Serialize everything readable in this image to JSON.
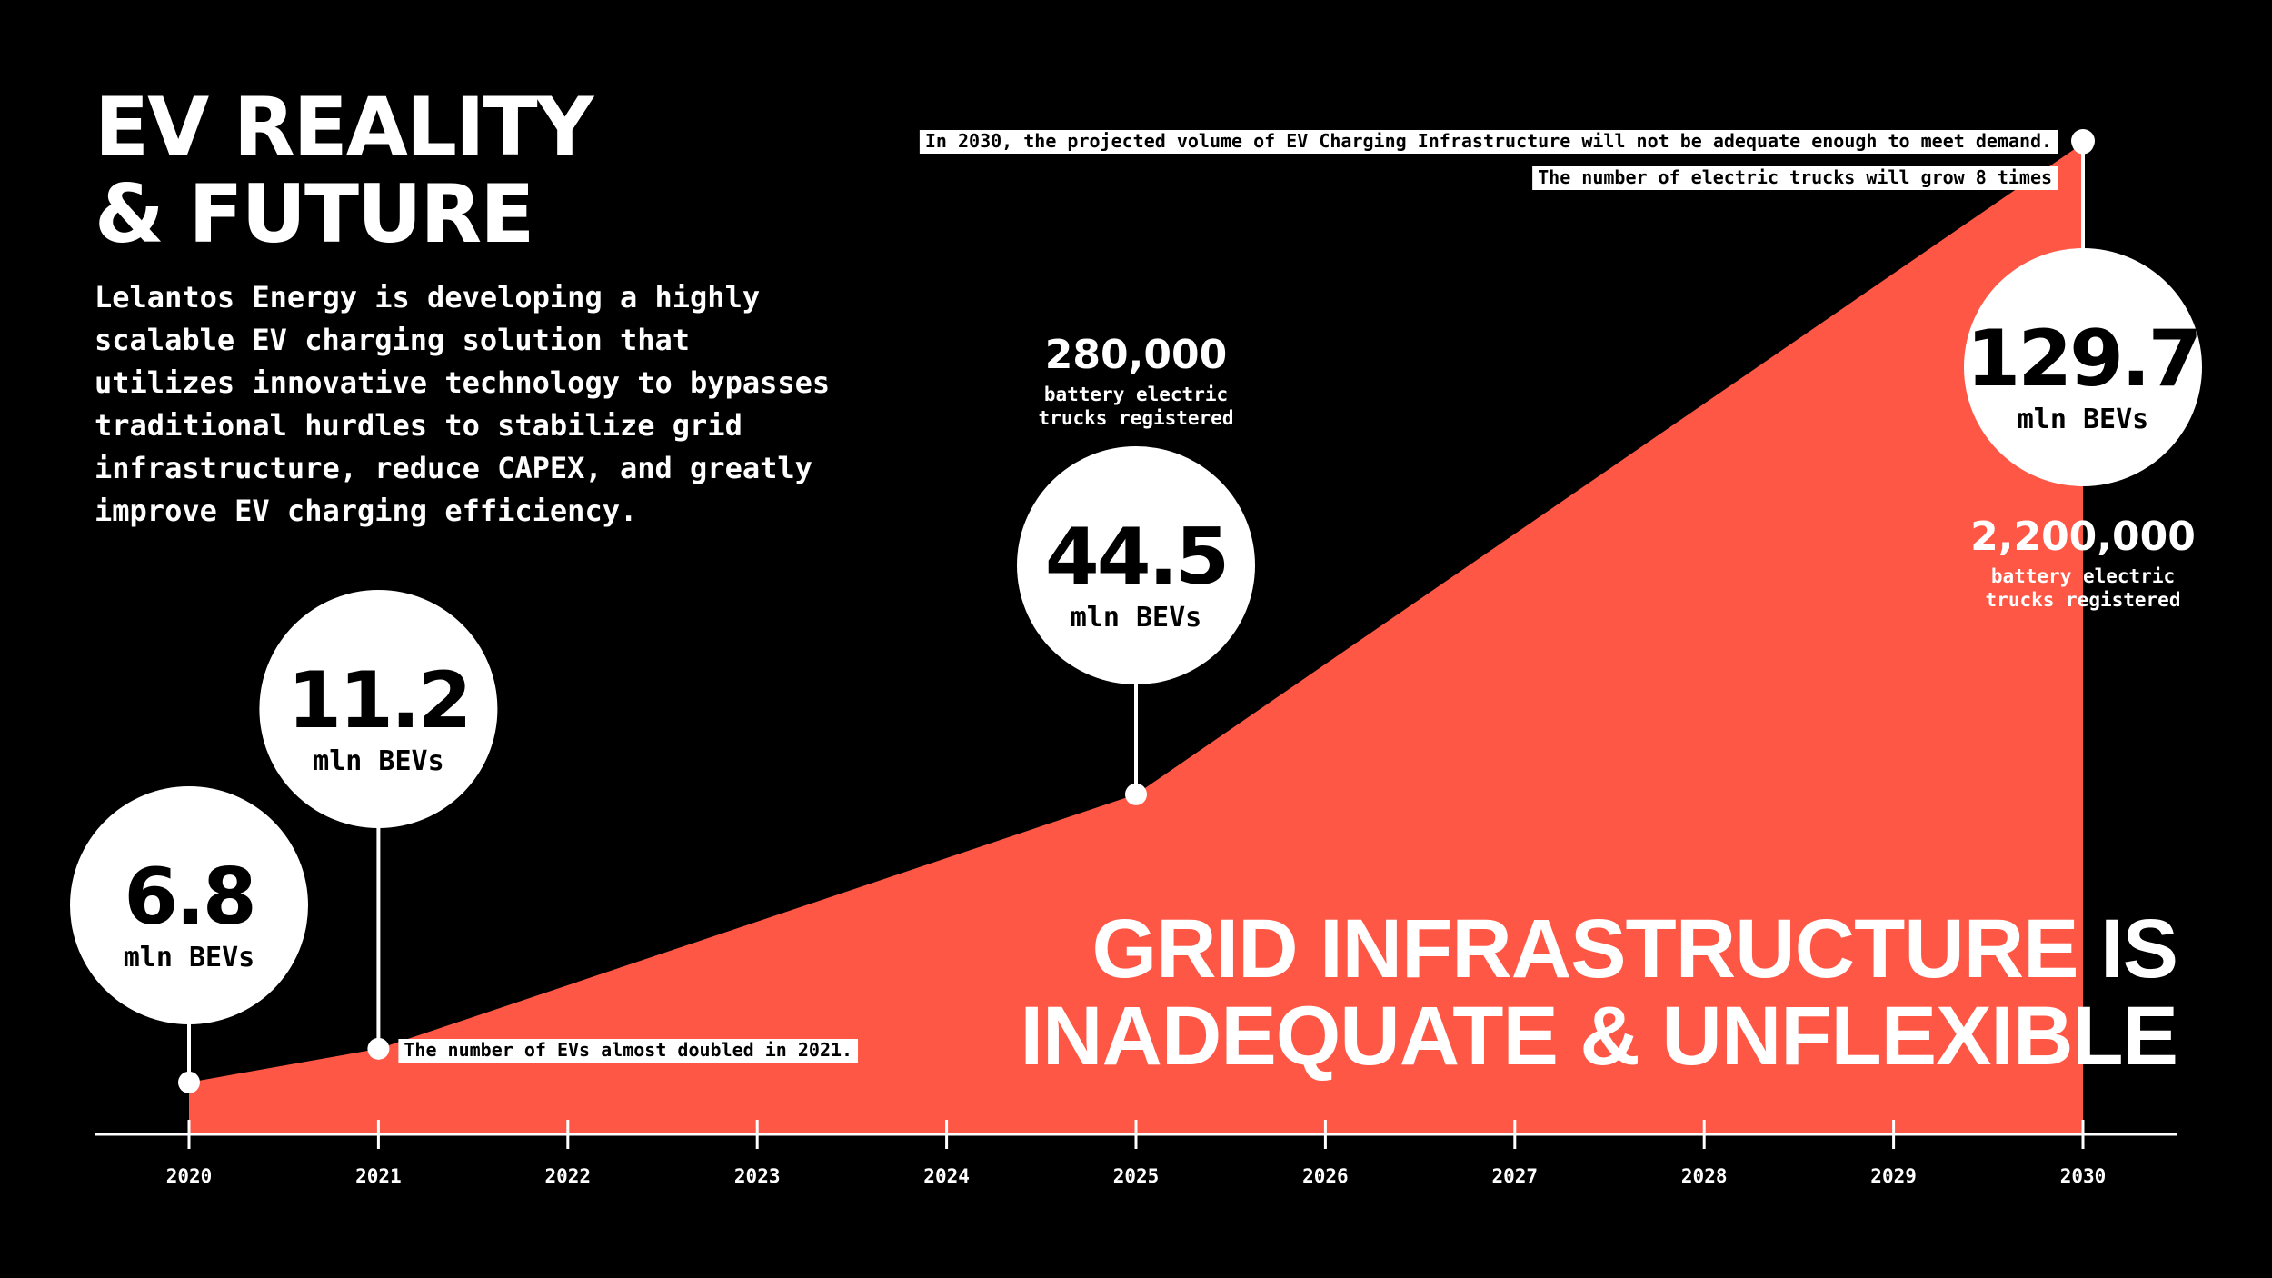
{
  "title": {
    "line1": "EV REALITY",
    "line2": "& FUTURE"
  },
  "description": "Lelantos Energy is developing a highly scalable EV charging solution that utilizes innovative technology to bypasses traditional hurdles to stabilize grid infrastructure, reduce CAPEX, and greatly improve EV charging efficiency.",
  "headline": {
    "line1": "GRID INFRASTRUCTURE IS",
    "line2": "INADEQUATE & UNFLEXIBLE"
  },
  "colors": {
    "background": "#000000",
    "area": "#ff5745",
    "text": "#ffffff",
    "bubble": "#ffffff",
    "bubble_text": "#000000"
  },
  "chart_data": {
    "type": "area",
    "title": "EV REALITY & FUTURE",
    "xlabel": "",
    "ylabel": "mln BEVs",
    "x_ticks": [
      "2020",
      "2021",
      "2022",
      "2023",
      "2024",
      "2025",
      "2026",
      "2027",
      "2028",
      "2029",
      "2030"
    ],
    "xlim": [
      2020,
      2030
    ],
    "ylim": [
      0,
      130
    ],
    "series": [
      {
        "name": "Battery electric vehicles (mln BEVs)",
        "x": [
          2020,
          2021,
          2025,
          2030
        ],
        "values": [
          6.8,
          11.2,
          44.5,
          129.7
        ]
      }
    ],
    "bubbles": [
      {
        "year": 2020,
        "value": "6.8",
        "unit": "mln BEVs"
      },
      {
        "year": 2021,
        "value": "11.2",
        "unit": "mln BEVs"
      },
      {
        "year": 2025,
        "value": "44.5",
        "unit": "mln BEVs"
      },
      {
        "year": 2030,
        "value": "129.7",
        "unit": "mln BEVs"
      }
    ],
    "annotations": [
      {
        "year": 2021,
        "text": "The number of EVs almost doubled in 2021."
      },
      {
        "year": 2030,
        "text": "In 2030, the projected volume of EV Charging Infrastructure will not be adequate enough to meet demand."
      },
      {
        "year": 2030,
        "text": "The number of electric trucks will grow 8 times"
      }
    ],
    "trucks": [
      {
        "year": 2025,
        "value": "280,000",
        "line1": "battery electric",
        "line2": "trucks registered"
      },
      {
        "year": 2030,
        "value": "2,200,000",
        "line1": "battery electric",
        "line2": "trucks registered"
      }
    ]
  }
}
